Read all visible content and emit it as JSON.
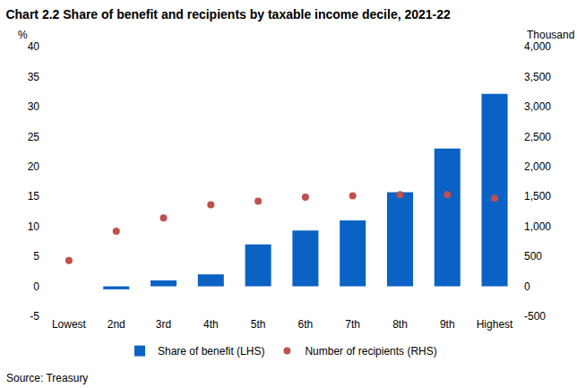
{
  "chart_data": {
    "type": "bar",
    "title": "Chart 2.2 Share of benefit and recipients by taxable income decile, 2021-22",
    "ylabel": "%",
    "y2label": "Thousand",
    "source": "Source: Treasury",
    "categories": [
      "Lowest",
      "2nd",
      "3rd",
      "4th",
      "5th",
      "6th",
      "7th",
      "8th",
      "9th",
      "Highest"
    ],
    "series": [
      {
        "name": "Share of benefit (LHS)",
        "type": "bar",
        "color": "#0a62c4",
        "values": [
          0,
          -0.5,
          1.0,
          2.0,
          7.0,
          9.3,
          11.0,
          15.7,
          23.0,
          32.1
        ]
      },
      {
        "name": "Number of recipients (RHS)",
        "type": "scatter",
        "axis": "y2",
        "marker": "circle",
        "color": "#c0504d",
        "values": [
          430,
          920,
          1140,
          1360,
          1420,
          1490,
          1510,
          1530,
          1530,
          1470
        ]
      }
    ],
    "ylim": [
      -5,
      40
    ],
    "yticks": [
      -5,
      0,
      5,
      10,
      15,
      20,
      25,
      30,
      35,
      40
    ],
    "y2lim": [
      -500,
      4000
    ],
    "y2ticks": [
      -500,
      0,
      500,
      {
        "value": 1000,
        "label": "1,000"
      },
      {
        "value": 1500,
        "label": "1,500"
      },
      {
        "value": 2000,
        "label": "2,000"
      },
      {
        "value": 2500,
        "label": "2,500"
      },
      {
        "value": 3000,
        "label": "3,000"
      },
      {
        "value": 3500,
        "label": "3,500"
      },
      {
        "value": 4000,
        "label": "4,000"
      }
    ],
    "grid": false,
    "legend": "bottom"
  }
}
